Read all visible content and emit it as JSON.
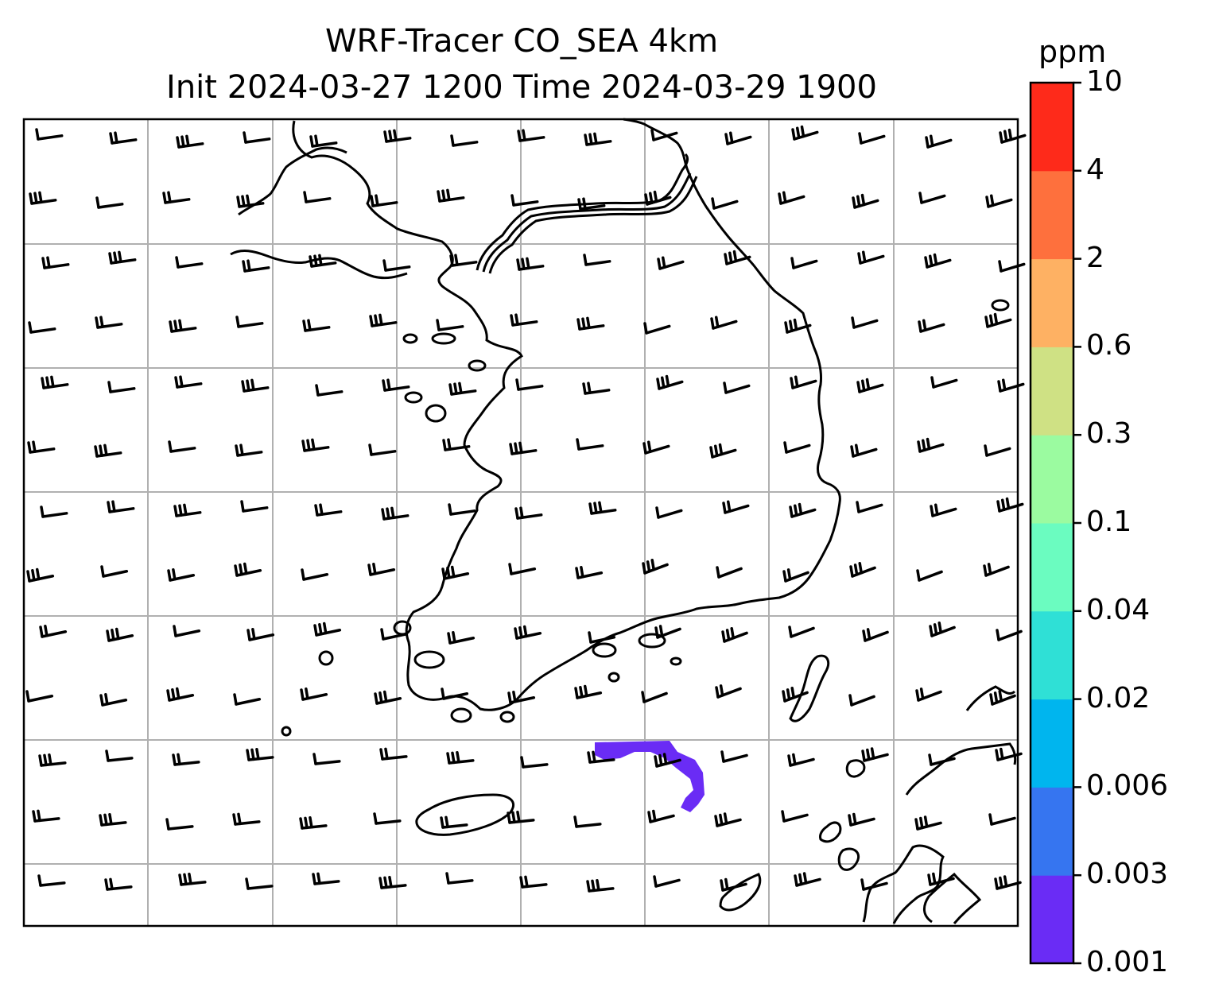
{
  "title": {
    "line1": "WRF-Tracer CO_SEA 4km",
    "line2": "Init 2024-03-27 1200 Time 2024-03-29 1900"
  },
  "colorbar": {
    "unit": "ppm",
    "levels": [
      "0.001",
      "0.003",
      "0.006",
      "0.02",
      "0.04",
      "0.1",
      "0.3",
      "0.6",
      "2",
      "4",
      "10"
    ],
    "colors": [
      "#6a2cf5",
      "#3675f0",
      "#00b5ee",
      "#2fe0d6",
      "#6bfcc0",
      "#9bfba0",
      "#cfe184",
      "#feb163",
      "#fe703d",
      "#fe2a1a"
    ]
  },
  "plume": {
    "level": "0.001",
    "color": "#6a2cf5"
  },
  "map": {
    "gridlines": true,
    "gridline_color": "#b0b0b0",
    "coastline_color": "#000000",
    "wind_barbs": "black"
  }
}
